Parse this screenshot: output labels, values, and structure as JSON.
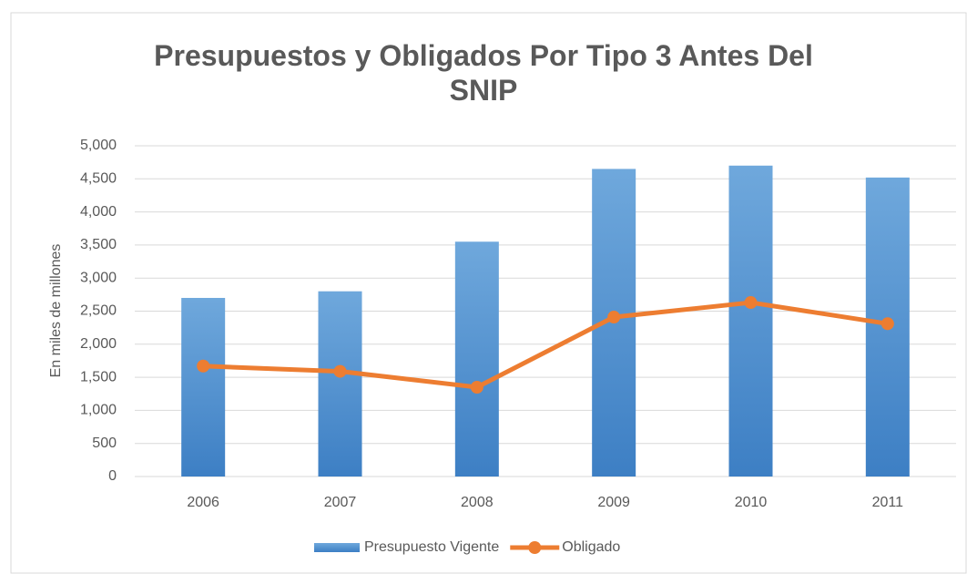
{
  "chart_data": {
    "type": "bar",
    "title": "Presupuestos y Obligados Por Tipo 3 Antes Del\nSNIP",
    "y_label": "En miles de millones",
    "categories": [
      "2006",
      "2007",
      "2008",
      "2009",
      "2010",
      "2011"
    ],
    "series": [
      {
        "name": "Presupuesto Vigente",
        "type": "bar",
        "color": "#5b9bd5",
        "values": [
          2700,
          2800,
          3550,
          4650,
          4700,
          4520
        ]
      },
      {
        "name": "Obligado",
        "type": "line",
        "color": "#ed7d31",
        "values": [
          1670,
          1590,
          1350,
          2410,
          2630,
          2310
        ]
      }
    ],
    "ylim": [
      0,
      5000
    ],
    "yticks": [
      0,
      500,
      {
        "value": 1000,
        "label": "1,000"
      },
      {
        "value": 1500,
        "label": "1,500"
      },
      {
        "value": 2000,
        "label": "2,000"
      },
      {
        "value": 2500,
        "label": "2,500"
      },
      {
        "value": 3000,
        "label": "3,000"
      },
      {
        "value": 3500,
        "label": "3,500"
      },
      {
        "value": 4000,
        "label": "4,000"
      },
      {
        "value": 4500,
        "label": "4,500"
      },
      {
        "value": 5000,
        "label": "5,000"
      }
    ],
    "grid": true,
    "legend": "bottom"
  }
}
